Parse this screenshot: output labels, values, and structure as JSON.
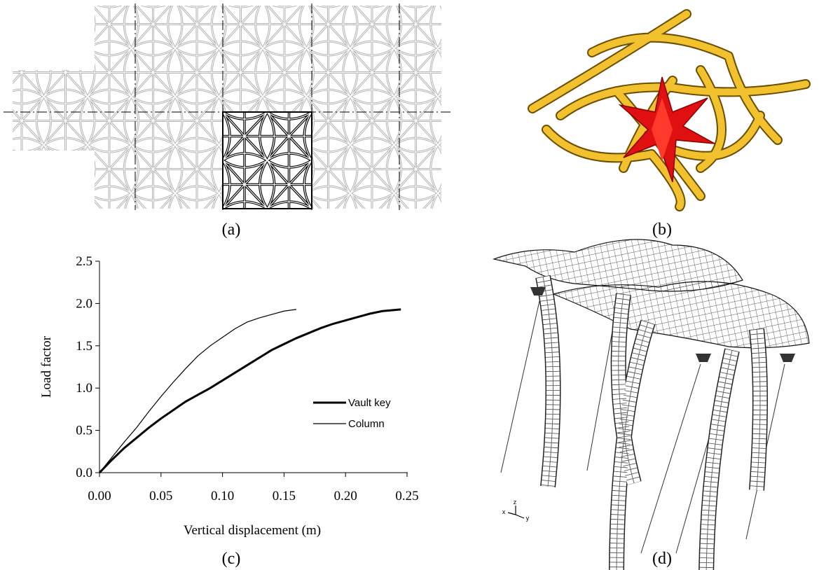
{
  "panels": {
    "a": {
      "caption": "(a)"
    },
    "b": {
      "caption": "(b)"
    },
    "d": {
      "caption": "(d)",
      "axis_labels": [
        "z",
        "x",
        "y"
      ]
    }
  },
  "chart_data": {
    "type": "line",
    "caption": "(c)",
    "x_label": "Vertical displacement (m)",
    "y_label": "Load factor",
    "xlim": [
      0,
      0.25
    ],
    "ylim": [
      0,
      2.5
    ],
    "xticks": [
      {
        "value": 0,
        "label": "0.00"
      },
      {
        "value": 0.05,
        "label": "0.05"
      },
      {
        "value": 0.1,
        "label": "0.10"
      },
      {
        "value": 0.15,
        "label": "0.15"
      },
      {
        "value": 0.2,
        "label": "0.20"
      },
      {
        "value": 0.25,
        "label": "0.25"
      }
    ],
    "yticks": [
      {
        "value": 0,
        "label": "0.0"
      },
      {
        "value": 0.5,
        "label": "0.5"
      },
      {
        "value": 1,
        "label": "1.0"
      },
      {
        "value": 1.5,
        "label": "1.5"
      },
      {
        "value": 2,
        "label": "2.0"
      },
      {
        "value": 2.5,
        "label": "2.5"
      }
    ],
    "legend": "center-right",
    "series": [
      {
        "name": "Vault key",
        "color": "#000000",
        "width": 3,
        "x": [
          0,
          0.01,
          0.02,
          0.03,
          0.04,
          0.05,
          0.06,
          0.07,
          0.08,
          0.09,
          0.1,
          0.11,
          0.12,
          0.13,
          0.14,
          0.15,
          0.16,
          0.17,
          0.18,
          0.19,
          0.2,
          0.21,
          0.22,
          0.23,
          0.245
        ],
        "values": [
          0,
          0.15,
          0.29,
          0.41,
          0.53,
          0.64,
          0.74,
          0.84,
          0.92,
          1.0,
          1.09,
          1.18,
          1.27,
          1.36,
          1.45,
          1.52,
          1.59,
          1.65,
          1.71,
          1.76,
          1.8,
          1.84,
          1.88,
          1.91,
          1.93
        ]
      },
      {
        "name": "Column",
        "color": "#000000",
        "width": 1.2,
        "x": [
          0,
          0.01,
          0.02,
          0.03,
          0.04,
          0.05,
          0.06,
          0.07,
          0.08,
          0.09,
          0.1,
          0.11,
          0.12,
          0.13,
          0.14,
          0.15,
          0.16
        ],
        "values": [
          0,
          0.18,
          0.36,
          0.53,
          0.72,
          0.9,
          1.07,
          1.23,
          1.38,
          1.5,
          1.6,
          1.7,
          1.78,
          1.83,
          1.87,
          1.91,
          1.93
        ]
      }
    ]
  }
}
